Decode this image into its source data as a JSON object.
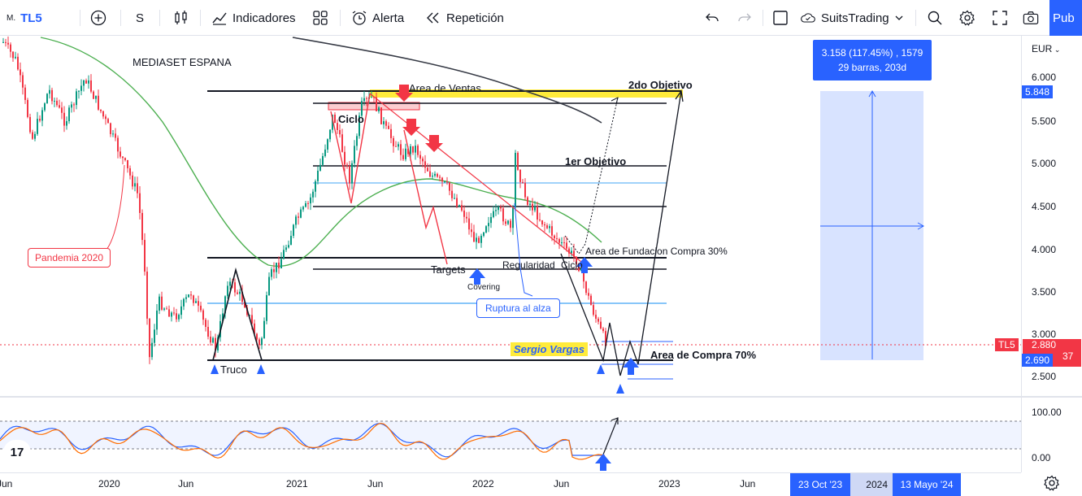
{
  "toolbar": {
    "symbol_prefix": "M.",
    "symbol": "TL5",
    "interval": "S",
    "indicators_label": "Indicadores",
    "alert_label": "Alerta",
    "replay_label": "Repetición",
    "layout_name": "SuitsTrading",
    "publish_label": "Pub"
  },
  "chart": {
    "instrument_title": "MEDIASET ESPANA",
    "currency": "EUR",
    "price_ticks": [
      "6.000",
      "5.500",
      "5.000",
      "4.500",
      "4.000",
      "3.500",
      "3.000",
      "2.500"
    ],
    "highlight_price": "5.848",
    "last_price_tag": "TL5",
    "last_price": "2.880",
    "last_price_suffix": "37",
    "low_price": "2.690",
    "osc_ticks": [
      "100.00",
      "0.00"
    ],
    "time_ticks": [
      "Jun",
      "2020",
      "Jun",
      "2021",
      "Jun",
      "2022",
      "Jun",
      "2023",
      "Jun",
      "2024"
    ],
    "range_start": "23 Oct '23",
    "range_end": "13 Mayo '24",
    "measure_line1": "3.158 (117.45%) , 1579",
    "measure_line2": "29 barras, 203d",
    "colors": {
      "up": "#089981",
      "down": "#f23645",
      "accent": "#2962ff",
      "ma_slow": "#4caf50",
      "ma_long": "#363a45"
    }
  },
  "annotations": {
    "area_ventas": "Area de Ventas",
    "segundo_objetivo": "2do Objetivo",
    "ciclo": "Ciclo",
    "primer_objetivo": "1er Objetivo",
    "area_fundacion": "Area de Fundacion Compra 30%",
    "targets": "Targets",
    "regularidad": "Regularidad",
    "ciclo2": "Ciclo",
    "covering": "Covering",
    "ruptura": "Ruptura al alza",
    "pandemia": "Pandemia 2020",
    "truco": "Truco",
    "firma": "Sergio Vargas",
    "area_compra": "Area de Compra 70%",
    "logo": "17"
  }
}
